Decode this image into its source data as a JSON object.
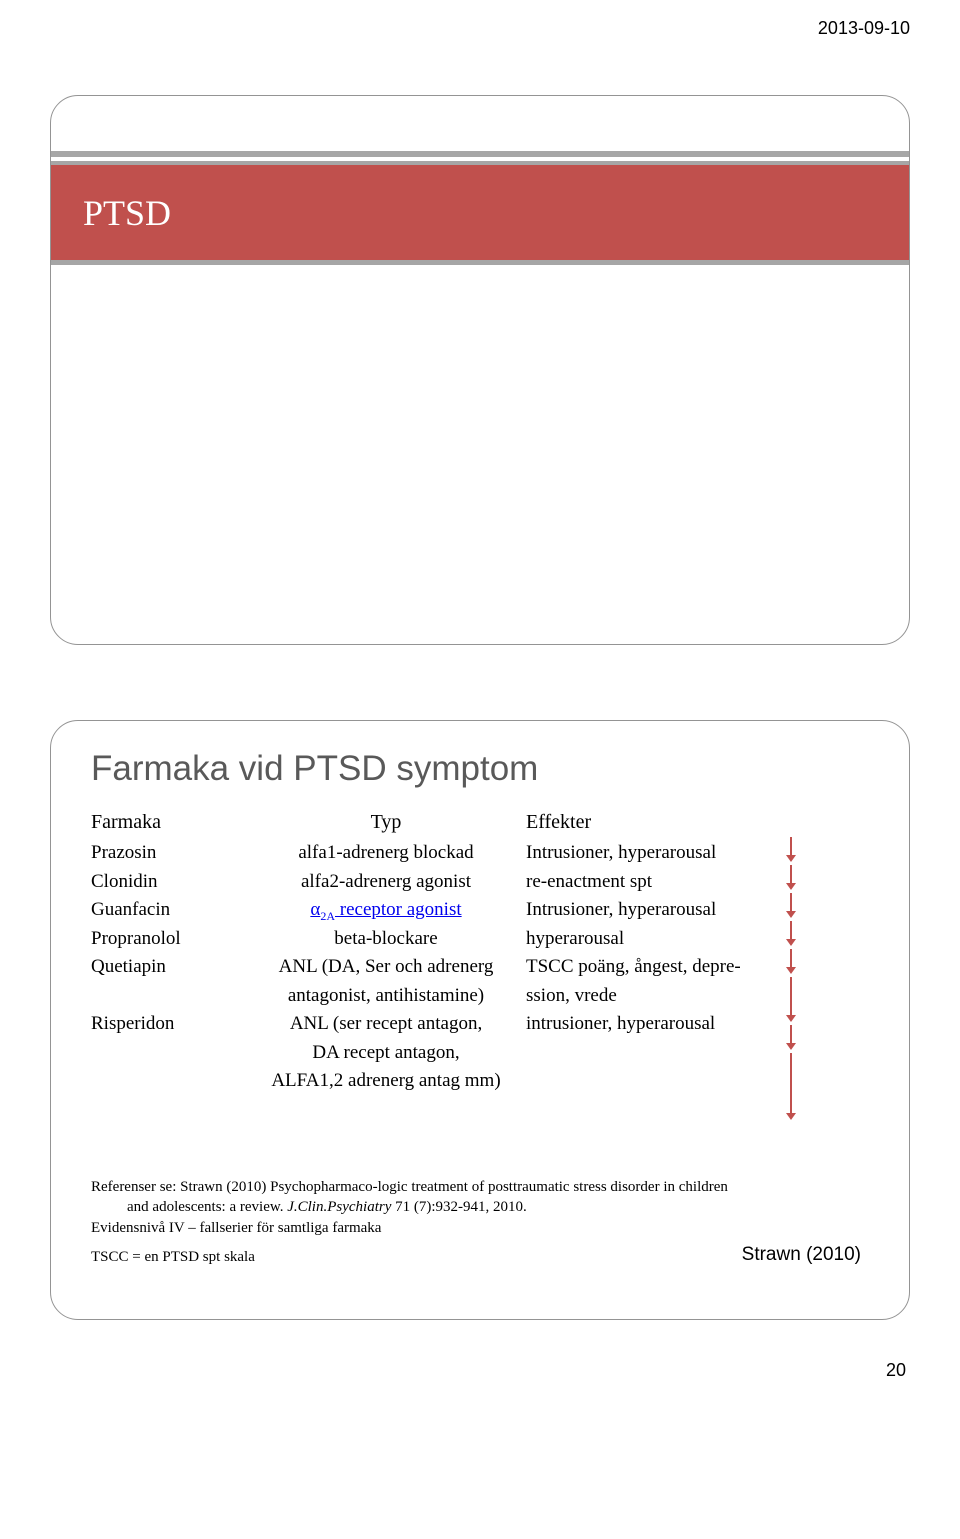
{
  "date_header": "2013-09-10",
  "colors": {
    "orange_band": "#c0504d",
    "grey_band": "#a6a6a6",
    "slide_border": "#949494",
    "arrow_red": "#c0504d",
    "title_grey": "#595959",
    "link_blue": "#0000ee"
  },
  "slide1": {
    "title": "PTSD"
  },
  "slide2": {
    "title": "Farmaka vid PTSD symptom",
    "headers": {
      "farmaka": "Farmaka",
      "typ": "Typ",
      "effekter": "Effekter"
    },
    "rows": [
      {
        "farmaka": "Prazosin",
        "typ": "alfa1-adrenerg blockad",
        "effekter": "Intrusioner, hyperarousal",
        "arrow_len": 1
      },
      {
        "farmaka": "Clonidin",
        "typ": "alfa2-adrenerg agonist",
        "effekter": "re-enactment spt",
        "arrow_len": 1
      },
      {
        "farmaka": "Guanfacin",
        "typ_html": "α<sub>2A</sub> receptor agonist",
        "typ_is_link": true,
        "effekter": "Intrusioner, hyperarousal",
        "arrow_len": 1
      },
      {
        "farmaka": "Propranolol",
        "typ": "beta-blockare",
        "effekter": "hyperarousal",
        "arrow_len": 1
      },
      {
        "farmaka": "Quetiapin",
        "typ": "ANL (DA, Ser och adrenerg",
        "effekter": "TSCC poäng, ångest, depre-",
        "arrow_len": 1
      },
      {
        "farmaka": "",
        "typ": "antagonist, antihistamine)",
        "effekter": "ssion, vrede",
        "arrow_len": 2
      },
      {
        "farmaka": "Risperidon",
        "typ": "ANL (ser recept antagon,",
        "effekter": "intrusioner, hyperarousal",
        "arrow_len": 1
      },
      {
        "farmaka": "",
        "typ": "DA recept antagon,",
        "effekter": "",
        "arrow_len": 3
      },
      {
        "farmaka": "",
        "typ": "ALFA1,2 adrenerg antag mm)",
        "effekter": "",
        "arrow_len": 0
      }
    ],
    "refs_line1": "Referenser se: Strawn (2010) Psychopharmaco-logic treatment of posttraumatic stress disorder in children",
    "refs_line2_a": "and adolescents: a review. ",
    "refs_line2_ital": "J.Clin.Psychiatry",
    "refs_line2_b": " 71 (7):932-941, 2010.",
    "refs_line3": "Evidensnivå IV – fallserier för samtliga farmaka",
    "tscc_note": "TSCC = en PTSD spt skala",
    "strawn_cite": "Strawn (2010)"
  },
  "page_number": "20",
  "arrow_style": {
    "color": "#c0504d",
    "stroke_width": 2,
    "head_width": 10,
    "head_height": 8,
    "unit_height": 28,
    "long_extra_1": 48,
    "long_extra_2": 70
  }
}
